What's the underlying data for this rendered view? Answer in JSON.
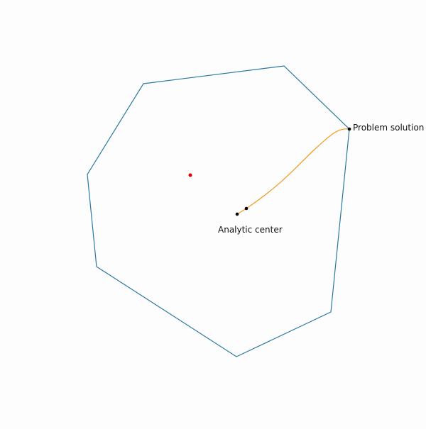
{
  "labels": {
    "analytic_center": "Analytic center",
    "problem_solution": "Problem solution"
  },
  "colors": {
    "background": "#fdfdfe",
    "polygon_edge": "#2a78a0",
    "path": "#f39a1e",
    "point": "#000000",
    "start_point": "#e00000"
  }
}
